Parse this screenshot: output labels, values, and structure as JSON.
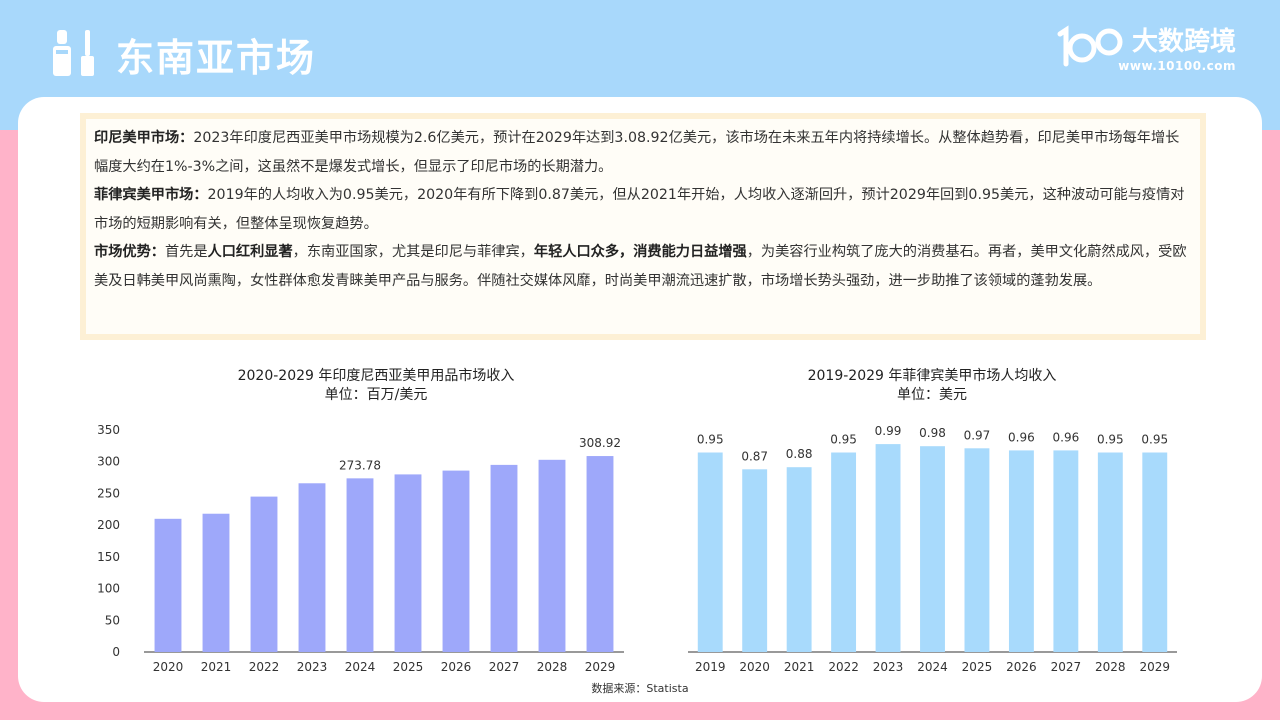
{
  "header": {
    "title": "东南亚市场",
    "brand_name": "大数跨境",
    "brand_url": "www.10100.com"
  },
  "paragraphs": [
    {
      "head": "印尼美甲市场：",
      "segments": [
        {
          "t": "2023年印度尼西亚美甲市场规模为2.6亿美元，预计在2029年达到3.08.92亿美元，该市场在未来五年内将持续增长。从整体趋势看，印尼美甲市场每年增长幅度大约在1%-3%之间，这虽然不是爆发式增长，但显示了印尼市场的长期潜力。",
          "b": false
        }
      ]
    },
    {
      "head": "菲律宾美甲市场：",
      "segments": [
        {
          "t": "2019年的人均收入为0.95美元，2020年有所下降到0.87美元，但从2021年开始，人均收入逐渐回升，预计2029年回到0.95美元，这种波动可能与疫情对市场的短期影响有关，但整体呈现恢复趋势。",
          "b": false
        }
      ]
    },
    {
      "head": "市场优势：",
      "segments": [
        {
          "t": "首先是",
          "b": false
        },
        {
          "t": "人口红利显著",
          "b": true
        },
        {
          "t": "，东南亚国家，尤其是印尼与菲律宾，",
          "b": false
        },
        {
          "t": "年轻人口众多，消费能力日益增强",
          "b": true
        },
        {
          "t": "，为美容行业构筑了庞大的消费基石。再者，美甲文化蔚然成风，受欧美及日韩美甲风尚熏陶，女性群体愈发青睐美甲产品与服务。伴随社交媒体风靡，时尚美甲潮流迅速扩散，市场增长势头强劲，进一步助推了该领域的蓬勃发展。",
          "b": false
        }
      ]
    }
  ],
  "chart_data": [
    {
      "type": "bar",
      "title": "2020-2029 年印度尼西亚美甲用品市场收入",
      "subtitle": "单位：百万/美元",
      "categories": [
        "2020",
        "2021",
        "2022",
        "2023",
        "2024",
        "2025",
        "2026",
        "2027",
        "2028",
        "2029"
      ],
      "values": [
        210,
        218,
        245,
        266,
        273.78,
        280,
        286,
        295,
        303,
        308.92
      ],
      "labeled": [
        "",
        "",
        "",
        "",
        "273.78",
        "",
        "",
        "",
        "",
        "308.92"
      ],
      "ylim": [
        0,
        350
      ],
      "yticks": [
        0,
        50,
        100,
        150,
        200,
        250,
        300,
        350
      ],
      "color": "#9ea8fa",
      "grid": false
    },
    {
      "type": "bar",
      "title": "2019-2029 年菲律宾美甲市场人均收入",
      "subtitle": "单位：美元",
      "categories": [
        "2019",
        "2020",
        "2021",
        "2022",
        "2023",
        "2024",
        "2025",
        "2026",
        "2027",
        "2028",
        "2029"
      ],
      "values": [
        0.95,
        0.87,
        0.88,
        0.95,
        0.99,
        0.98,
        0.97,
        0.96,
        0.96,
        0.95,
        0.95
      ],
      "labeled": [
        "0.95",
        "0.87",
        "0.88",
        "0.95",
        "0.99",
        "0.98",
        "0.97",
        "0.96",
        "0.96",
        "0.95",
        "0.95"
      ],
      "ylim": [
        0,
        1.2
      ],
      "color": "#a8dafc",
      "grid": false
    }
  ],
  "source": "数据来源：Statista"
}
